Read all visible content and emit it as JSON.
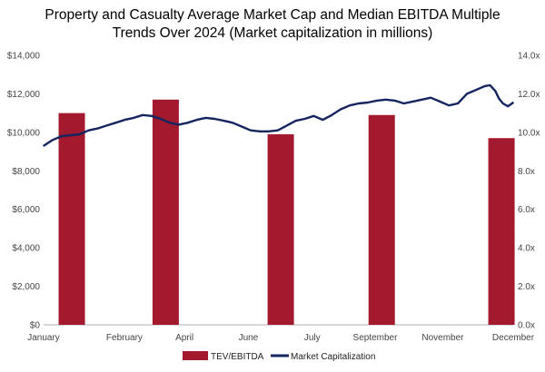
{
  "chart_data": {
    "type": "bar+line",
    "title_line1": "Property and Casualty Average Market Cap and Median EBITDA Multiple",
    "title_line2": "Trends Over 2024  (Market capitalization in millions)",
    "x_tick_labels": [
      "January",
      "February",
      "April",
      "June",
      "July",
      "September",
      "November",
      "December"
    ],
    "y_left": {
      "ylim": [
        0,
        14000
      ],
      "tick_labels": [
        "$0",
        "$2,000",
        "$4,000",
        "$6,000",
        "$8,000",
        "$10,000",
        "$12,000",
        "$14,000"
      ]
    },
    "y_right": {
      "ylim": [
        0,
        14
      ],
      "tick_labels": [
        "0.0x",
        "2.0x",
        "4.0x",
        "6.0x",
        "8.0x",
        "10.0x",
        "12.0x",
        "14.0x"
      ]
    },
    "series": [
      {
        "name": "TEV/EBITDA",
        "type": "bar",
        "axis": "right",
        "color": "#A31A2F",
        "points": [
          {
            "x": "January",
            "y": 11.0
          },
          {
            "x": "March",
            "y": 11.7
          },
          {
            "x": "June",
            "y": 9.9
          },
          {
            "x": "September",
            "y": 10.9
          },
          {
            "x": "December",
            "y": 9.7
          }
        ]
      },
      {
        "name": "Market Capitalization",
        "type": "line",
        "axis": "left",
        "color": "#15255F",
        "points": [
          {
            "x": "2024-01-01",
            "y": 9300
          },
          {
            "x": "2024-01-08",
            "y": 9600
          },
          {
            "x": "2024-01-15",
            "y": 9800
          },
          {
            "x": "2024-01-22",
            "y": 9850
          },
          {
            "x": "2024-01-29",
            "y": 9900
          },
          {
            "x": "2024-02-05",
            "y": 10100
          },
          {
            "x": "2024-02-12",
            "y": 10200
          },
          {
            "x": "2024-02-19",
            "y": 10350
          },
          {
            "x": "2024-02-26",
            "y": 10500
          },
          {
            "x": "2024-03-04",
            "y": 10650
          },
          {
            "x": "2024-03-11",
            "y": 10750
          },
          {
            "x": "2024-03-18",
            "y": 10900
          },
          {
            "x": "2024-03-25",
            "y": 10850
          },
          {
            "x": "2024-04-01",
            "y": 10700
          },
          {
            "x": "2024-04-08",
            "y": 10500
          },
          {
            "x": "2024-04-15",
            "y": 10400
          },
          {
            "x": "2024-04-22",
            "y": 10500
          },
          {
            "x": "2024-04-29",
            "y": 10650
          },
          {
            "x": "2024-05-06",
            "y": 10750
          },
          {
            "x": "2024-05-13",
            "y": 10700
          },
          {
            "x": "2024-05-20",
            "y": 10600
          },
          {
            "x": "2024-05-27",
            "y": 10500
          },
          {
            "x": "2024-06-03",
            "y": 10300
          },
          {
            "x": "2024-06-10",
            "y": 10100
          },
          {
            "x": "2024-06-17",
            "y": 10050
          },
          {
            "x": "2024-06-24",
            "y": 10050
          },
          {
            "x": "2024-07-01",
            "y": 10100
          },
          {
            "x": "2024-07-08",
            "y": 10350
          },
          {
            "x": "2024-07-15",
            "y": 10600
          },
          {
            "x": "2024-07-22",
            "y": 10700
          },
          {
            "x": "2024-07-29",
            "y": 10850
          },
          {
            "x": "2024-08-05",
            "y": 10650
          },
          {
            "x": "2024-08-12",
            "y": 10900
          },
          {
            "x": "2024-08-19",
            "y": 11200
          },
          {
            "x": "2024-08-26",
            "y": 11400
          },
          {
            "x": "2024-09-02",
            "y": 11500
          },
          {
            "x": "2024-09-09",
            "y": 11550
          },
          {
            "x": "2024-09-16",
            "y": 11650
          },
          {
            "x": "2024-09-23",
            "y": 11700
          },
          {
            "x": "2024-09-30",
            "y": 11650
          },
          {
            "x": "2024-10-07",
            "y": 11500
          },
          {
            "x": "2024-10-14",
            "y": 11600
          },
          {
            "x": "2024-10-21",
            "y": 11700
          },
          {
            "x": "2024-10-28",
            "y": 11800
          },
          {
            "x": "2024-11-04",
            "y": 11600
          },
          {
            "x": "2024-11-11",
            "y": 11400
          },
          {
            "x": "2024-11-18",
            "y": 11500
          },
          {
            "x": "2024-11-25",
            "y": 12000
          },
          {
            "x": "2024-12-02",
            "y": 12200
          },
          {
            "x": "2024-12-09",
            "y": 12400
          },
          {
            "x": "2024-12-13",
            "y": 12450
          },
          {
            "x": "2024-12-17",
            "y": 12150
          },
          {
            "x": "2024-12-20",
            "y": 11750
          },
          {
            "x": "2024-12-23",
            "y": 11500
          },
          {
            "x": "2024-12-27",
            "y": 11350
          },
          {
            "x": "2024-12-31",
            "y": 11550
          }
        ]
      }
    ],
    "legend_position": "bottom",
    "grid": false
  }
}
